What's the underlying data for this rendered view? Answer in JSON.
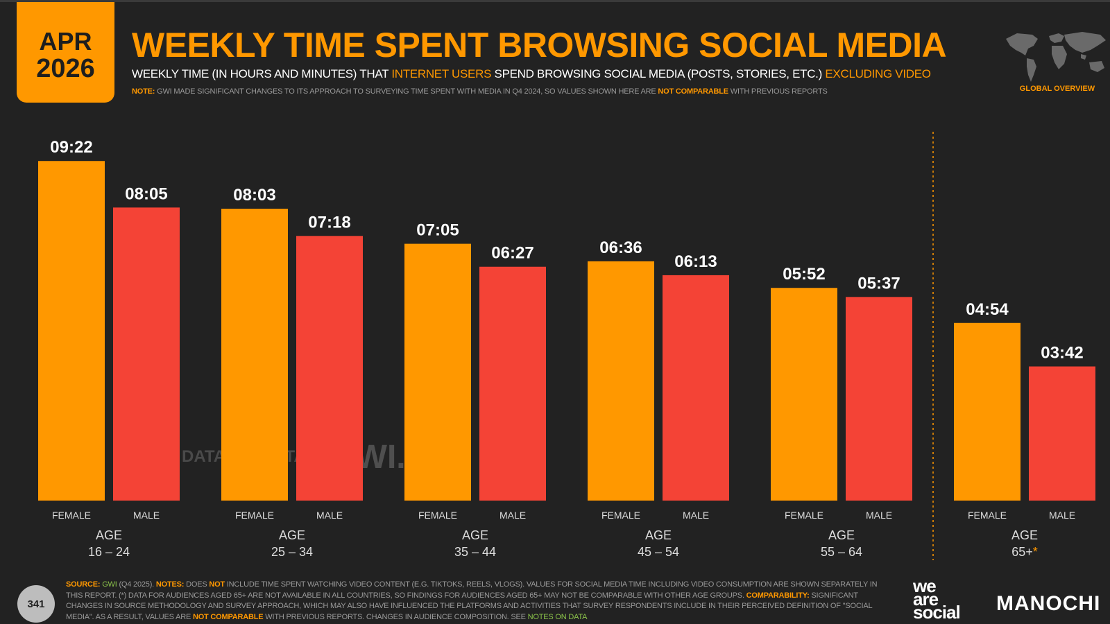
{
  "header": {
    "month": "APR",
    "year": "2026",
    "title": "WEEKLY TIME SPENT BROWSING SOCIAL MEDIA",
    "subtitle_part1": "WEEKLY TIME (IN HOURS AND MINUTES) THAT ",
    "subtitle_hl1": "INTERNET USERS",
    "subtitle_part2": " SPEND BROWSING SOCIAL MEDIA (POSTS, STORIES, ETC.) ",
    "subtitle_hl2": "EXCLUDING VIDEO",
    "note_label": "NOTE:",
    "note_part1": " GWI MADE SIGNIFICANT CHANGES TO ITS APPROACH TO SURVEYING TIME SPENT WITH MEDIA IN Q4 2024, SO VALUES SHOWN HERE ARE ",
    "note_hl": "NOT COMPARABLE",
    "note_part2": " WITH PREVIOUS REPORTS",
    "region_label": "GLOBAL OVERVIEW"
  },
  "colors": {
    "female": "#ff9800",
    "male": "#f44336",
    "accent": "#ff9800",
    "background": "#222222"
  },
  "chart_data": {
    "type": "bar",
    "title": "WEEKLY TIME SPENT BROWSING SOCIAL MEDIA",
    "unit": "hours:minutes per week",
    "groups": [
      {
        "age_label": "AGE",
        "age_range": "16 – 24",
        "female_label": "FEMALE",
        "male_label": "MALE",
        "female_display": "09:22",
        "male_display": "08:05",
        "female_minutes": 562,
        "male_minutes": 485
      },
      {
        "age_label": "AGE",
        "age_range": "25 – 34",
        "female_label": "FEMALE",
        "male_label": "MALE",
        "female_display": "08:03",
        "male_display": "07:18",
        "female_minutes": 483,
        "male_minutes": 438
      },
      {
        "age_label": "AGE",
        "age_range": "35 – 44",
        "female_label": "FEMALE",
        "male_label": "MALE",
        "female_display": "07:05",
        "male_display": "06:27",
        "female_minutes": 425,
        "male_minutes": 387
      },
      {
        "age_label": "AGE",
        "age_range": "45 – 54",
        "female_label": "FEMALE",
        "male_label": "MALE",
        "female_display": "06:36",
        "male_display": "06:13",
        "female_minutes": 396,
        "male_minutes": 373
      },
      {
        "age_label": "AGE",
        "age_range": "55 – 64",
        "female_label": "FEMALE",
        "male_label": "MALE",
        "female_display": "05:52",
        "male_display": "05:37",
        "female_minutes": 352,
        "male_minutes": 337
      },
      {
        "age_label": "AGE",
        "age_range": "65+",
        "age_suffix": "*",
        "female_label": "FEMALE",
        "male_label": "MALE",
        "female_display": "04:54",
        "male_display": "03:42",
        "female_minutes": 294,
        "male_minutes": 222
      }
    ]
  },
  "watermark": {
    "brand1": "DATAREPORTAL",
    "brand2": "GWI."
  },
  "footer": {
    "source_label": "SOURCE:",
    "source_gwi": "GWI",
    "source_date": " (Q4 2025). ",
    "notes_label": "NOTES:",
    "notes_text1": " DOES ",
    "notes_not": "NOT",
    "notes_text2": " INCLUDE TIME SPENT WATCHING VIDEO CONTENT (E.G. TIKTOKS, REELS, VLOGS). VALUES FOR SOCIAL MEDIA TIME INCLUDING VIDEO CONSUMPTION ARE SHOWN SEPARATELY IN THIS REPORT. (*) DATA FOR AUDIENCES AGED 65+ ARE NOT AVAILABLE IN ALL COUNTRIES, SO FINDINGS FOR AUDIENCES AGED 65+ MAY NOT BE COMPARABLE WITH OTHER AGE GROUPS. ",
    "comparability_label": "COMPARABILITY:",
    "comparability_text": " SIGNIFICANT CHANGES IN SOURCE METHODOLOGY AND SURVEY APPROACH, WHICH MAY ALSO HAVE INFLUENCED THE PLATFORMS AND ACTIVITIES THAT SURVEY RESPONDENTS INCLUDE IN THEIR PERCEIVED DEFINITION OF \"SOCIAL MEDIA\". AS A RESULT, VALUES ARE ",
    "not_comparable": "NOT COMPARABLE",
    "comparability_text2": " WITH PREVIOUS REPORTS. CHANGES IN AUDIENCE COMPOSITION. SEE ",
    "notes_on_data": "NOTES ON DATA",
    "page_number": "341",
    "brand_was": "we are social",
    "brand_was_1": "we",
    "brand_was_2": "are",
    "brand_was_3": "social",
    "brand_partner": "MANOCHI"
  }
}
